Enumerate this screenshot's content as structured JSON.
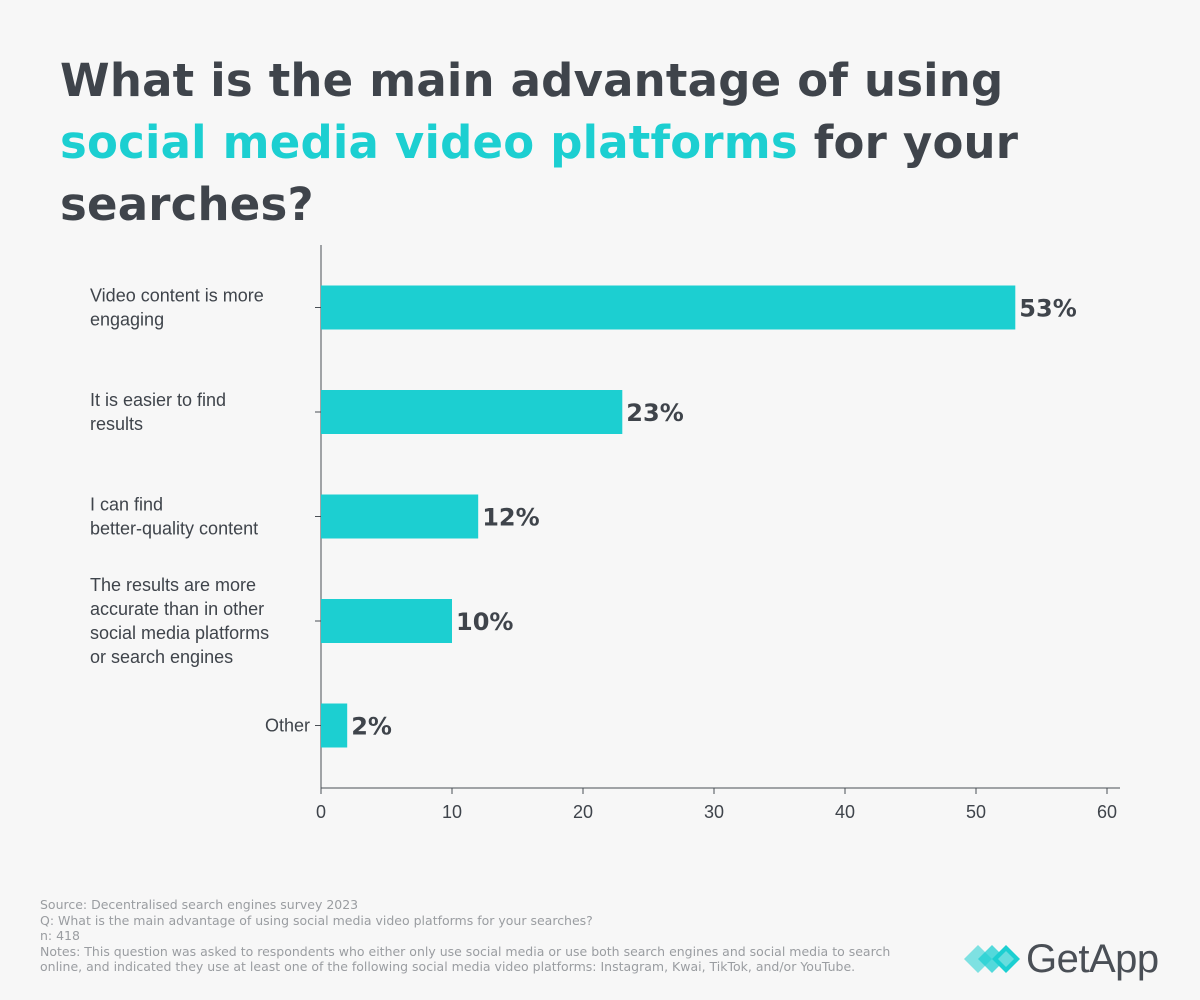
{
  "title": {
    "part1": "What is the main advantage of using ",
    "highlight": "social media video platforms",
    "part2": " for your searches?"
  },
  "colors": {
    "accent": "#1ccfd1",
    "text": "#3f444b",
    "muted": "#9a9da1"
  },
  "chart_data": {
    "type": "bar",
    "orientation": "horizontal",
    "categories": [
      [
        "Video content is more",
        "engaging"
      ],
      [
        "It is easier to find",
        "results"
      ],
      [
        "I can find",
        "better-quality content"
      ],
      [
        "The results are more",
        "accurate than in other",
        "social media platforms",
        "or search engines"
      ],
      [
        "Other"
      ]
    ],
    "values": [
      53,
      23,
      12,
      10,
      2
    ],
    "value_labels": [
      "53%",
      "23%",
      "12%",
      "10%",
      "2%"
    ],
    "xlim": [
      0,
      60
    ],
    "xticks": [
      0,
      10,
      20,
      30,
      40,
      50,
      60
    ],
    "grid": false,
    "bar_color": "#1ccfd1"
  },
  "footnotes": {
    "source": "Source: Decentralised search engines survey 2023",
    "question": "Q: What is the main advantage of using social media video platforms for your searches?",
    "n": "n: 418",
    "notes": "Notes: This question was asked to respondents who either only use social media or use both search engines and social media to search online, and indicated they use at least one of the following social media video platforms: Instagram, Kwai, TikTok, and/or YouTube."
  },
  "logo": {
    "text": "GetApp",
    "icon": "getapp-chevrons-icon"
  }
}
